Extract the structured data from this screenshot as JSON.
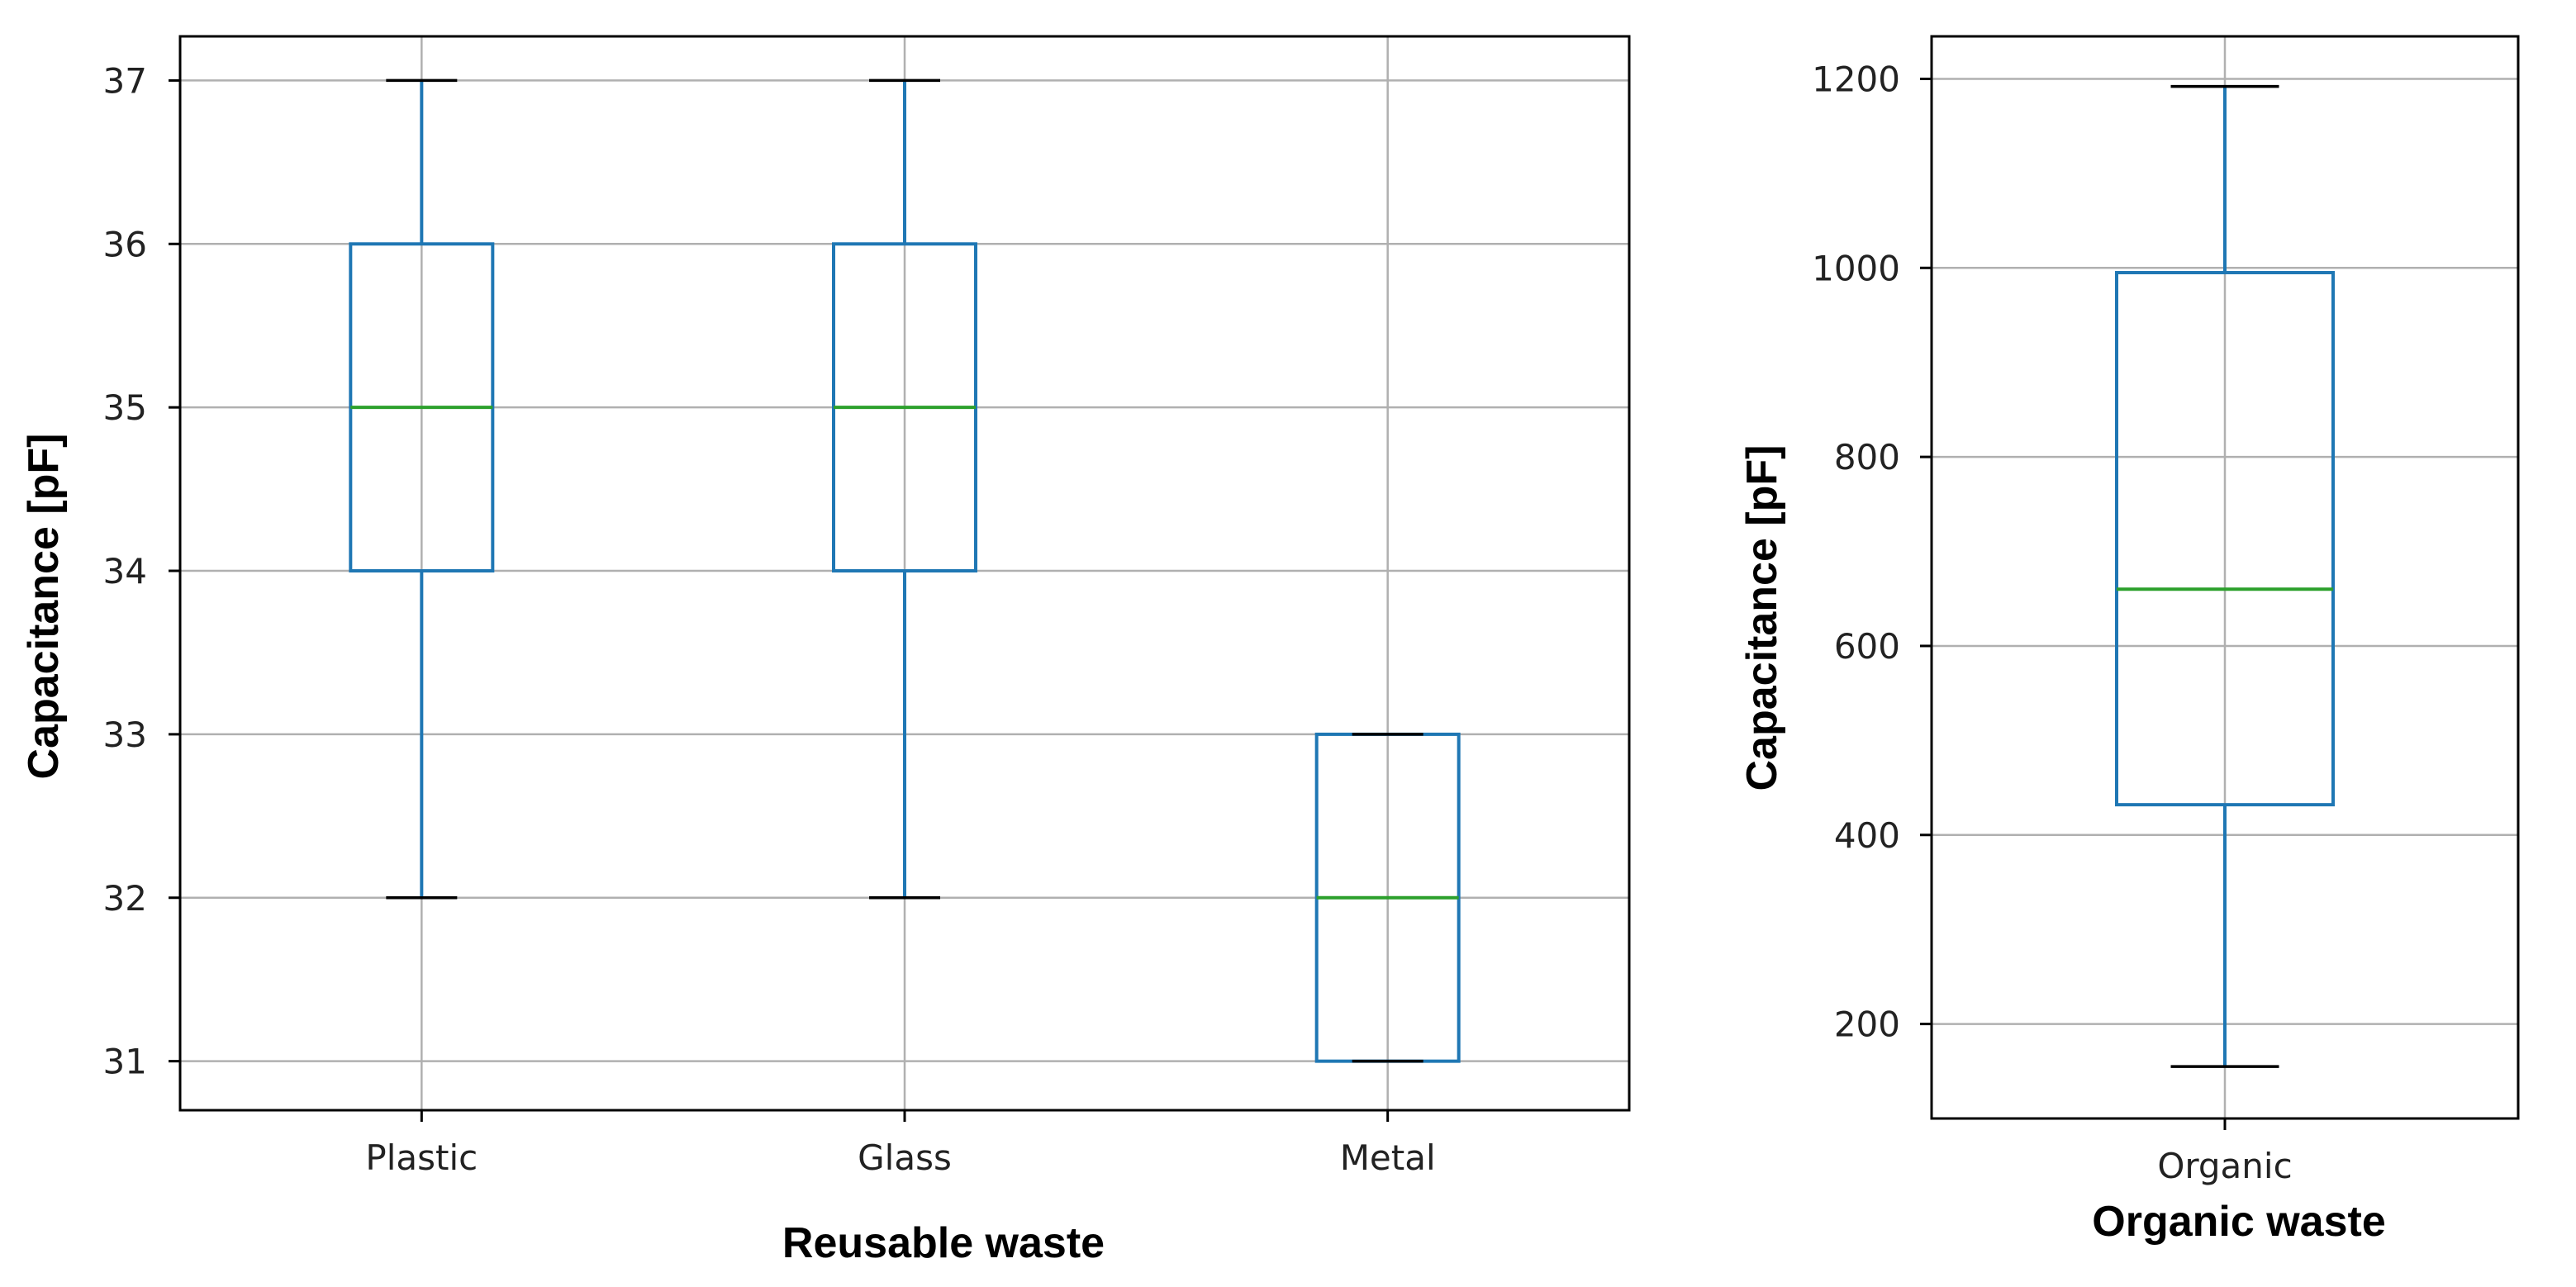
{
  "style": {
    "box_color": "#1f77b4",
    "median_color": "#2ca02c",
    "cap_color": "#000000",
    "grid_color": "#b0b0b0"
  },
  "chart_data": [
    {
      "type": "box",
      "xlabel": "Reusable waste",
      "ylabel": "Capacitance [pF]",
      "ylim": [
        30.7,
        37.27
      ],
      "yticks": [
        31,
        32,
        33,
        34,
        35,
        36,
        37
      ],
      "grid": true,
      "categories": [
        "Plastic",
        "Glass",
        "Metal"
      ],
      "boxes": [
        {
          "category": "Plastic",
          "whisker_low": 32,
          "q1": 34,
          "median": 35,
          "q3": 36,
          "whisker_high": 37
        },
        {
          "category": "Glass",
          "whisker_low": 32,
          "q1": 34,
          "median": 35,
          "q3": 36,
          "whisker_high": 37
        },
        {
          "category": "Metal",
          "whisker_low": 31,
          "q1": 31,
          "median": 32,
          "q3": 33,
          "whisker_high": 33
        }
      ]
    },
    {
      "type": "box",
      "xlabel": "Organic waste",
      "ylabel": "Capacitance [pF]",
      "ylim": [
        100,
        1245
      ],
      "yticks": [
        200,
        400,
        600,
        800,
        1000,
        1200
      ],
      "grid": true,
      "categories": [
        "Organic"
      ],
      "boxes": [
        {
          "category": "Organic",
          "whisker_low": 155,
          "q1": 432,
          "median": 660,
          "q3": 995,
          "whisker_high": 1192
        }
      ]
    }
  ]
}
